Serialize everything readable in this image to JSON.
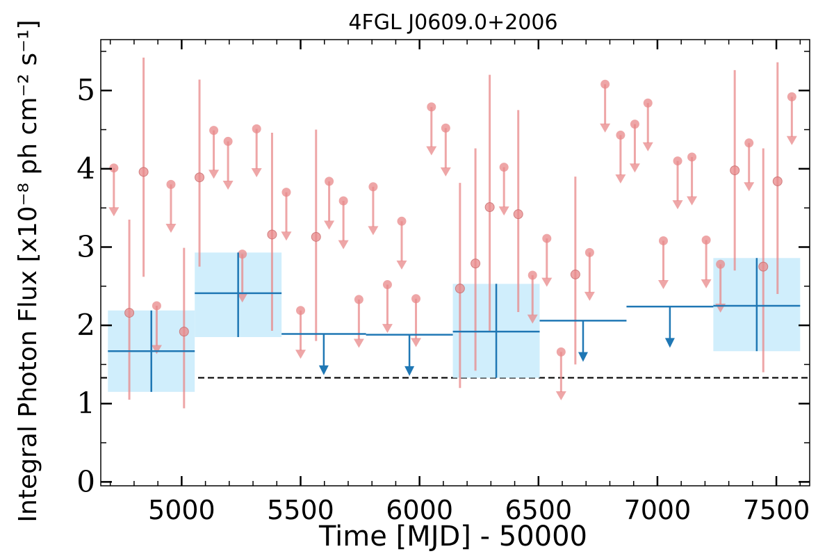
{
  "chart_data": {
    "type": "scatter",
    "title": "4FGL J0609.0+2006",
    "xlabel": "Time [MJD] - 50000",
    "ylabel": "Integral Photon Flux [x10⁻⁸ ph cm⁻² s⁻¹]",
    "xlim": [
      4660,
      7640
    ],
    "ylim": [
      -0.05,
      5.65
    ],
    "x_ticks": [
      5000,
      5500,
      6000,
      6500,
      7000,
      7500
    ],
    "y_ticks": [
      0,
      1,
      2,
      3,
      4,
      5
    ],
    "x_tick_labels": [
      "5000",
      "5500",
      "6000",
      "6500",
      "7000",
      "7500"
    ],
    "y_tick_labels": [
      "0",
      "1",
      "2",
      "3",
      "4",
      "5"
    ],
    "reference_line": 1.33,
    "colors": {
      "short_bins": "#e8888a",
      "long_bins": "#1f77b4",
      "long_bins_fill": "#d0eefc",
      "reference_line": "#000000"
    },
    "short_bin_detections": [
      {
        "x": 4780,
        "y": 2.16,
        "ylo": 1.05,
        "yhi": 3.35
      },
      {
        "x": 4840,
        "y": 3.96,
        "ylo": 2.62,
        "yhi": 5.42
      },
      {
        "x": 5010,
        "y": 1.92,
        "ylo": 0.94,
        "yhi": 2.99
      },
      {
        "x": 5075,
        "y": 3.89,
        "ylo": 2.75,
        "yhi": 5.14
      },
      {
        "x": 5380,
        "y": 3.16,
        "ylo": 1.93,
        "yhi": 4.46
      },
      {
        "x": 5565,
        "y": 3.13,
        "ylo": 1.8,
        "yhi": 4.5
      },
      {
        "x": 6170,
        "y": 2.47,
        "ylo": 1.2,
        "yhi": 3.82
      },
      {
        "x": 6235,
        "y": 2.79,
        "ylo": 1.42,
        "yhi": 4.26
      },
      {
        "x": 6295,
        "y": 3.51,
        "ylo": 1.92,
        "yhi": 5.2
      },
      {
        "x": 6415,
        "y": 3.42,
        "ylo": 2.17,
        "yhi": 4.75
      },
      {
        "x": 6655,
        "y": 2.65,
        "ylo": 1.5,
        "yhi": 3.9
      },
      {
        "x": 7325,
        "y": 3.98,
        "ylo": 2.7,
        "yhi": 5.26
      },
      {
        "x": 7445,
        "y": 2.75,
        "ylo": 1.4,
        "yhi": 4.26
      },
      {
        "x": 7505,
        "y": 3.84,
        "ylo": 2.4,
        "yhi": 5.36
      }
    ],
    "short_bin_upper_limits": [
      {
        "x": 4715,
        "y": 4.01
      },
      {
        "x": 4895,
        "y": 2.25
      },
      {
        "x": 4955,
        "y": 3.8
      },
      {
        "x": 5135,
        "y": 4.49
      },
      {
        "x": 5195,
        "y": 4.35
      },
      {
        "x": 5255,
        "y": 2.91
      },
      {
        "x": 5315,
        "y": 4.51
      },
      {
        "x": 5440,
        "y": 3.7
      },
      {
        "x": 5500,
        "y": 2.19
      },
      {
        "x": 5620,
        "y": 3.84
      },
      {
        "x": 5680,
        "y": 3.59
      },
      {
        "x": 5745,
        "y": 2.33
      },
      {
        "x": 5805,
        "y": 3.77
      },
      {
        "x": 5865,
        "y": 2.52
      },
      {
        "x": 5925,
        "y": 3.33
      },
      {
        "x": 5985,
        "y": 2.34
      },
      {
        "x": 6050,
        "y": 4.79
      },
      {
        "x": 6110,
        "y": 4.52
      },
      {
        "x": 6355,
        "y": 4.02
      },
      {
        "x": 6475,
        "y": 2.64
      },
      {
        "x": 6535,
        "y": 3.11
      },
      {
        "x": 6595,
        "y": 1.66
      },
      {
        "x": 6715,
        "y": 2.93
      },
      {
        "x": 6780,
        "y": 5.08
      },
      {
        "x": 6845,
        "y": 4.43
      },
      {
        "x": 6905,
        "y": 4.57
      },
      {
        "x": 6960,
        "y": 4.84
      },
      {
        "x": 7025,
        "y": 3.08
      },
      {
        "x": 7085,
        "y": 4.1
      },
      {
        "x": 7145,
        "y": 4.15
      },
      {
        "x": 7205,
        "y": 3.09
      },
      {
        "x": 7265,
        "y": 2.78
      },
      {
        "x": 7385,
        "y": 4.33
      },
      {
        "x": 7565,
        "y": 4.92
      }
    ],
    "long_bin_detections": [
      {
        "x0": 4690,
        "x1": 5055,
        "y": 1.67,
        "ylo": 1.15,
        "yhi": 2.19
      },
      {
        "x0": 5055,
        "x1": 5420,
        "y": 2.41,
        "ylo": 1.85,
        "yhi": 2.93
      },
      {
        "x0": 6140,
        "x1": 6505,
        "y": 1.92,
        "ylo": 1.33,
        "yhi": 2.53
      },
      {
        "x0": 7235,
        "x1": 7600,
        "y": 2.25,
        "ylo": 1.67,
        "yhi": 2.86
      }
    ],
    "long_bin_upper_limits": [
      {
        "x0": 5420,
        "x1": 5775,
        "y": 1.89
      },
      {
        "x0": 5775,
        "x1": 6140,
        "y": 1.88
      },
      {
        "x0": 6505,
        "x1": 6870,
        "y": 2.06
      },
      {
        "x0": 6870,
        "x1": 7235,
        "y": 2.24
      }
    ]
  }
}
